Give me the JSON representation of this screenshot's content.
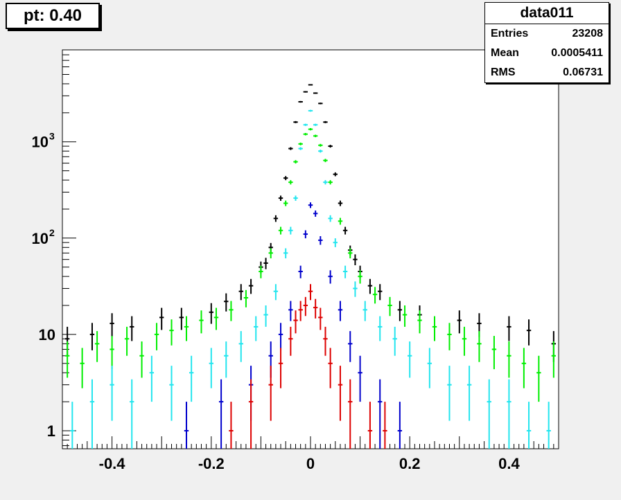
{
  "title": "pt: 0.40",
  "stats": {
    "name": "data011",
    "rows": [
      {
        "label": "Entries",
        "value": "23208"
      },
      {
        "label": "Mean",
        "value": "0.0005411"
      },
      {
        "label": "RMS",
        "value": "0.06731"
      }
    ]
  },
  "colors": {
    "black": "#000000",
    "green": "#00ee00",
    "cyan": "#22e5ee",
    "blue": "#0000cc",
    "red": "#dd0000",
    "frame_bg": "#ffffff",
    "pad_bg": "#f0f0f0"
  },
  "chart_data": {
    "type": "scatter",
    "title": "pt: 0.40",
    "xlabel": "",
    "ylabel": "",
    "xlim": [
      -0.5,
      0.5
    ],
    "ylim": [
      0.65,
      9000
    ],
    "yscale": "log",
    "grid": false,
    "x_ticks": [
      {
        "value": -0.4,
        "label": "-0.4"
      },
      {
        "value": -0.2,
        "label": "-0.2"
      },
      {
        "value": 0,
        "label": "0"
      },
      {
        "value": 0.2,
        "label": "0.2"
      },
      {
        "value": 0.4,
        "label": "0.4"
      }
    ],
    "y_ticks": [
      {
        "value": 1,
        "label": "1"
      },
      {
        "value": 10,
        "label": "10"
      },
      {
        "value": 100,
        "label": "10",
        "exp": "2"
      },
      {
        "value": 1000,
        "label": "10",
        "exp": "3"
      }
    ],
    "series": [
      {
        "color": "#000000",
        "x": [
          -0.49,
          -0.44,
          -0.4,
          -0.36,
          -0.3,
          -0.26,
          -0.2,
          -0.17,
          -0.14,
          -0.12,
          -0.1,
          -0.09,
          -0.08,
          -0.07,
          -0.06,
          -0.05,
          -0.04,
          -0.03,
          -0.02,
          -0.01,
          0,
          0.01,
          0.02,
          0.03,
          0.04,
          0.05,
          0.06,
          0.07,
          0.08,
          0.09,
          0.1,
          0.12,
          0.14,
          0.18,
          0.22,
          0.3,
          0.34,
          0.4,
          0.44,
          0.49
        ],
        "y": [
          9,
          10,
          13,
          12,
          15,
          15,
          17,
          22,
          28,
          32,
          50,
          55,
          80,
          160,
          260,
          420,
          850,
          1600,
          2600,
          3300,
          3900,
          3200,
          2500,
          1600,
          900,
          460,
          230,
          120,
          75,
          60,
          45,
          32,
          28,
          18,
          16,
          14,
          13,
          12,
          11,
          8
        ]
      },
      {
        "color": "#00ee00",
        "x": [
          -0.49,
          -0.46,
          -0.43,
          -0.4,
          -0.37,
          -0.34,
          -0.31,
          -0.28,
          -0.25,
          -0.22,
          -0.19,
          -0.16,
          -0.13,
          -0.1,
          -0.08,
          -0.06,
          -0.05,
          -0.04,
          -0.03,
          -0.02,
          -0.01,
          0,
          0.01,
          0.02,
          0.03,
          0.04,
          0.06,
          0.08,
          0.1,
          0.13,
          0.16,
          0.19,
          0.22,
          0.25,
          0.28,
          0.31,
          0.34,
          0.37,
          0.4,
          0.43,
          0.46,
          0.49
        ],
        "y": [
          6,
          5,
          8,
          7,
          9,
          6,
          10,
          11,
          12,
          14,
          15,
          18,
          24,
          45,
          70,
          120,
          230,
          380,
          620,
          950,
          1200,
          1350,
          1150,
          920,
          640,
          380,
          150,
          70,
          40,
          26,
          20,
          16,
          14,
          12,
          10,
          9,
          8,
          7,
          6,
          5,
          4,
          6
        ]
      },
      {
        "color": "#22e5ee",
        "x": [
          -0.48,
          -0.44,
          -0.4,
          -0.36,
          -0.32,
          -0.28,
          -0.24,
          -0.2,
          -0.17,
          -0.14,
          -0.11,
          -0.09,
          -0.07,
          -0.05,
          -0.04,
          -0.03,
          -0.02,
          -0.01,
          0,
          0.01,
          0.02,
          0.03,
          0.04,
          0.05,
          0.07,
          0.09,
          0.11,
          0.14,
          0.17,
          0.2,
          0.24,
          0.28,
          0.32,
          0.36,
          0.4,
          0.44,
          0.48
        ],
        "y": [
          1,
          2,
          3,
          2,
          4,
          3,
          4,
          5,
          6,
          8,
          12,
          16,
          28,
          70,
          120,
          260,
          850,
          1500,
          2100,
          1500,
          800,
          380,
          160,
          90,
          45,
          30,
          18,
          12,
          9,
          6,
          5,
          3,
          3,
          2,
          2,
          1,
          1
        ]
      },
      {
        "color": "#0000cc",
        "x": [
          -0.25,
          -0.18,
          -0.12,
          -0.08,
          -0.06,
          -0.04,
          -0.02,
          -0.01,
          0,
          0.01,
          0.02,
          0.04,
          0.06,
          0.08,
          0.1,
          0.14,
          0.18
        ],
        "y": [
          1,
          2,
          3,
          6,
          10,
          18,
          45,
          110,
          220,
          180,
          95,
          40,
          18,
          8,
          4,
          2,
          1
        ]
      },
      {
        "color": "#dd0000",
        "x": [
          -0.16,
          -0.12,
          -0.08,
          -0.06,
          -0.04,
          -0.03,
          -0.02,
          -0.01,
          0,
          0.01,
          0.02,
          0.03,
          0.04,
          0.06,
          0.08,
          0.12,
          0.15
        ],
        "y": [
          1,
          2,
          3,
          5,
          9,
          14,
          18,
          20,
          28,
          19,
          15,
          9,
          5,
          3,
          2,
          1,
          1
        ]
      }
    ]
  }
}
